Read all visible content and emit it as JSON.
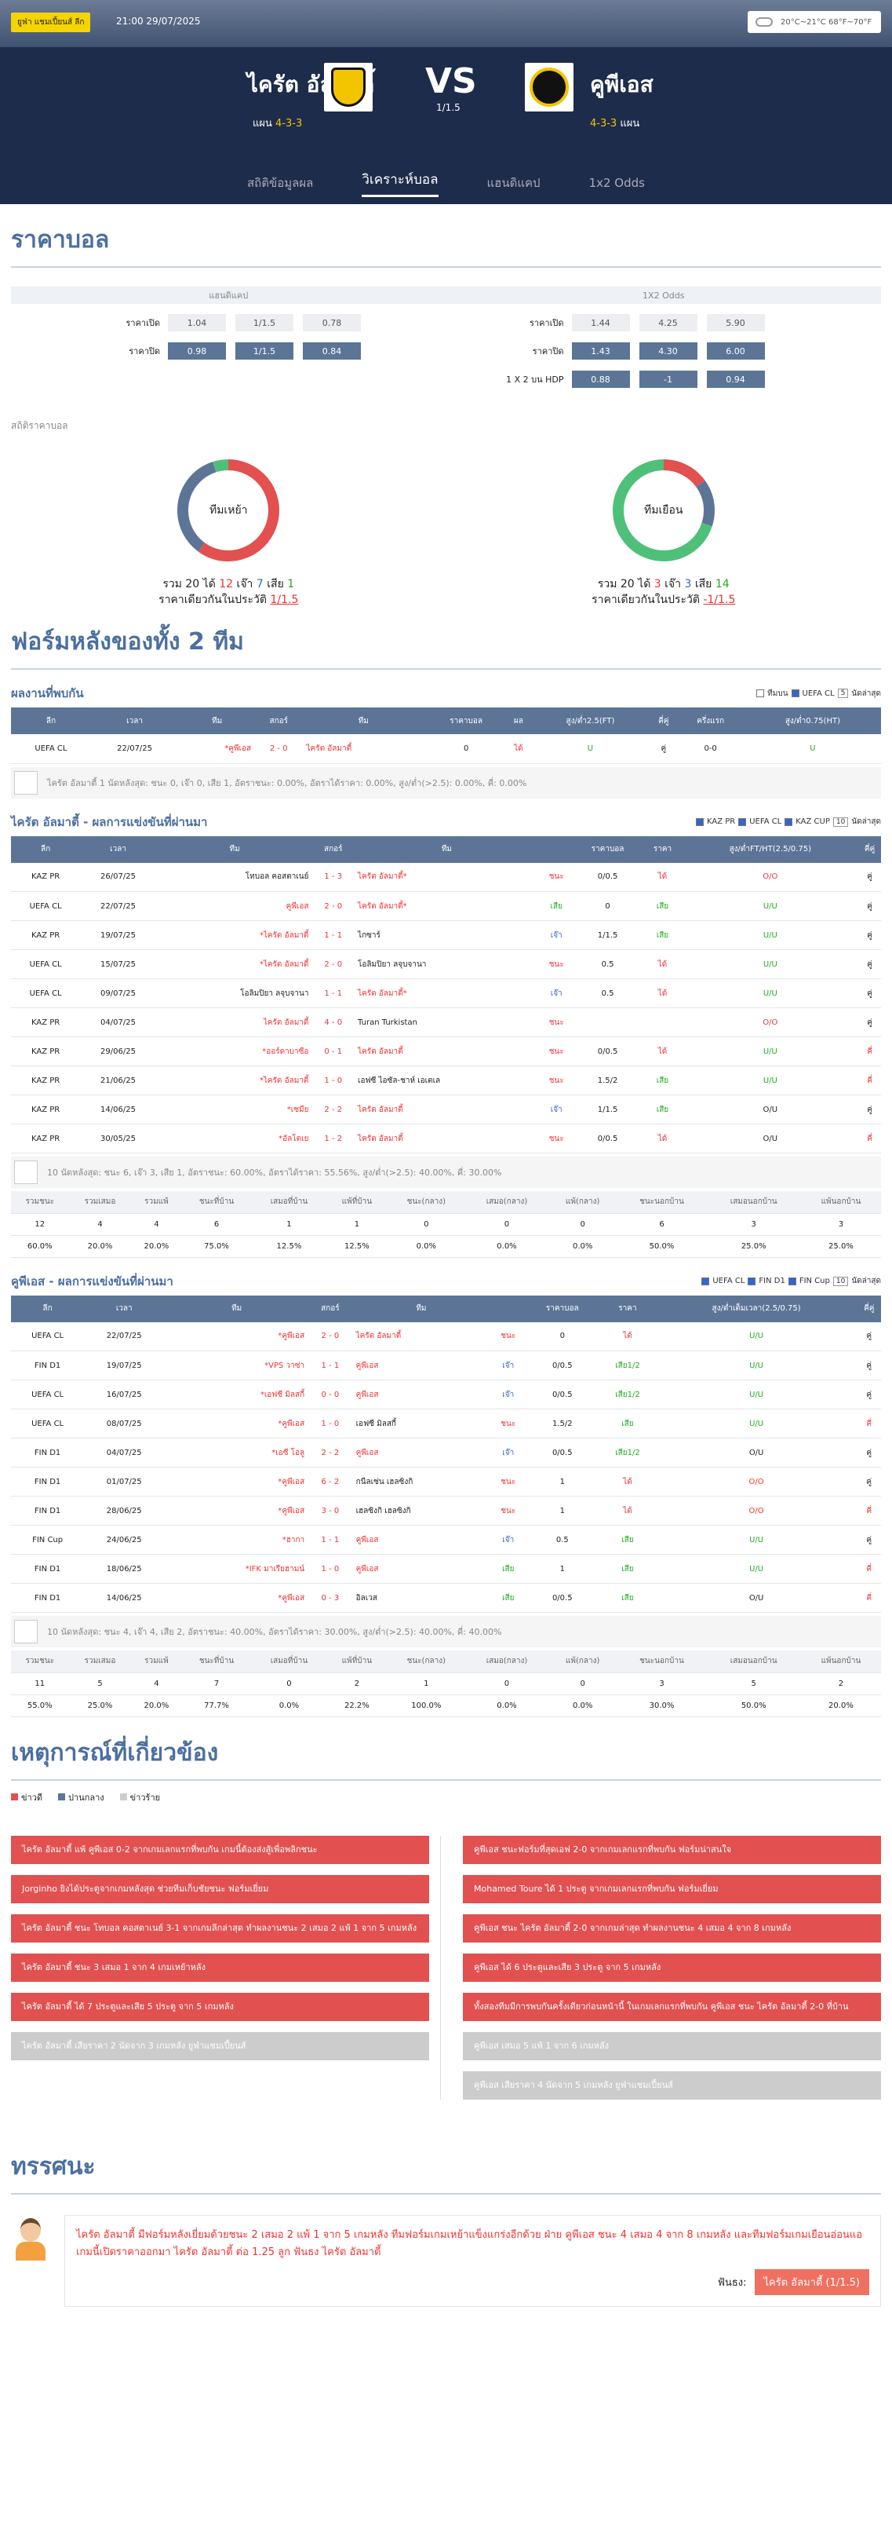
{
  "hero": {
    "league": "ยูฟ่า แชมเปี้ยนส์ ลีก",
    "datetime": "21:00 29/07/2025",
    "weather": "20°C~21°C  68°F~70°F",
    "home": "ไครัต อัลมาตี้",
    "away": "คูพีเอส",
    "vs": "VS",
    "hdp": "1/1.5",
    "home_form_lbl": "แผน",
    "home_form": "4-3-3",
    "away_form": "4-3-3",
    "away_form_lbl": "แผน"
  },
  "tabs": [
    "สถิติข้อมูลผล",
    "วิเคราะห์บอล",
    "แฮนดิแคป",
    "1x2 Odds"
  ],
  "odds": {
    "title": "ราคาบอล",
    "hcap_head": "แฮนดิแคป",
    "x12_head": "1X2 Odds",
    "open": "ราคาเปิด",
    "close": "ราคาปิด",
    "hdp_lbl": "1 X 2 บน HDP",
    "h_open": [
      "1.04",
      "1/1.5",
      "0.78"
    ],
    "h_close": [
      "0.98",
      "1/1.5",
      "0.84"
    ],
    "x_open": [
      "1.44",
      "4.25",
      "5.90"
    ],
    "x_close": [
      "1.43",
      "4.30",
      "6.00"
    ],
    "x_hdp": [
      "0.88",
      "-1",
      "0.94"
    ]
  },
  "stats": {
    "title": "สถิติราคาบอล",
    "home_lbl": "ทีมเหย้า",
    "away_lbl": "ทีมเยือน",
    "home_line": [
      "รวม",
      "20",
      "ได้",
      "12",
      "เจ๊า",
      "7",
      "เสีย",
      "1"
    ],
    "home_hdp": [
      "ราคาเดียวกันในประวัติ",
      "1/1.5"
    ],
    "away_line": [
      "รวม",
      "20",
      "ได้",
      "3",
      "เจ๊า",
      "3",
      "เสีย",
      "14"
    ],
    "away_hdp": [
      "ราคาเดียวกันในประวัติ",
      "-1/1.5"
    ]
  },
  "form": {
    "title": "ฟอร์มหลังของทั้ง 2 ทีม"
  },
  "h2h": {
    "title": "ผลงานที่พบกัน",
    "filters": [
      "ทีมบน",
      "UEFA CL",
      "5",
      "นัดล่าสุด"
    ],
    "cols": [
      "ลีก",
      "เวลา",
      "ทีม",
      "สกอร์",
      "ทีม",
      "ราคาบอล",
      "ผล",
      "สูง/ต่ำ2.5(FT)",
      "คี่คู่",
      "ครึ่งแรก",
      "สูง/ต่ำ0.75(HT)"
    ],
    "rows": [
      [
        "UEFA CL",
        "22/07/25",
        "*คูพีเอส",
        "2 - 0",
        "ไครัต อัลมาตี้",
        "0",
        "ได้",
        "U",
        "คู่",
        "0-0",
        "U"
      ]
    ],
    "summary": "ไครัต อัลมาตี้ 1 นัดหลังสุด: ชนะ 0, เจ๊า 0, เสีย 1, อัตราชนะ: 0.00%, อัตราได้ราคา: 0.00%, สูง/ต่ำ(>2.5): 0.00%, คี่: 0.00%"
  },
  "kairat": {
    "title": "ไครัต อัลมาตี้ - ผลการแข่งขันที่ผ่านมา",
    "filters": [
      "KAZ PR",
      "UEFA CL",
      "KAZ CUP",
      "10",
      "นัดล่าสุด"
    ],
    "cols": [
      "ลีก",
      "เวลา",
      "ทีม",
      "สกอร์",
      "ทีม",
      "",
      "ราคาบอล",
      "ราคา",
      "สูง/ต่ำFT/HT(2.5/0.75)",
      "คี่คู่"
    ],
    "rows": [
      [
        "KAZ PR",
        "26/07/25",
        "โทบอล คอสตาเนย์",
        "1 - 3",
        "ไครัต อัลมาตี้*",
        "ชนะ",
        "0/0.5",
        "ได้",
        "O/O",
        "คู่"
      ],
      [
        "UEFA CL",
        "22/07/25",
        "คูพีเอส",
        "2 - 0",
        "ไครัต อัลมาตี้*",
        "เสีย",
        "0",
        "เสีย",
        "U/U",
        "คู่"
      ],
      [
        "KAZ PR",
        "19/07/25",
        "*ไครัต อัลมาตี้",
        "1 - 1",
        "ไกซาร์",
        "เจ๊า",
        "1/1.5",
        "เสีย",
        "U/U",
        "คู่"
      ],
      [
        "UEFA CL",
        "15/07/25",
        "*ไครัต อัลมาตี้",
        "2 - 0",
        "โอลิมปิยา ลจุบจานา",
        "ชนะ",
        "0.5",
        "ได้",
        "U/U",
        "คู่"
      ],
      [
        "UEFA CL",
        "09/07/25",
        "โอลิมปิยา ลจุบจานา",
        "1 - 1",
        "ไครัต อัลมาตี้*",
        "เจ๊า",
        "0.5",
        "ได้",
        "U/U",
        "คู่"
      ],
      [
        "KAZ PR",
        "04/07/25",
        "ไครัต อัลมาตี้",
        "4 - 0",
        "Turan Turkistan",
        "ชนะ",
        "",
        "",
        "O/O",
        "คู่"
      ],
      [
        "KAZ PR",
        "29/06/25",
        "*ออร์ดาบาซือ",
        "0 - 1",
        "ไครัต อัลมาตี้",
        "ชนะ",
        "0/0.5",
        "ได้",
        "U/U",
        "คี่"
      ],
      [
        "KAZ PR",
        "21/06/25",
        "*ไครัต อัลมาตี้",
        "1 - 0",
        "เอฟซี ไอซัล-ชาห์ เอเตเล",
        "ชนะ",
        "1.5/2",
        "เสีย",
        "U/U",
        "คี่"
      ],
      [
        "KAZ PR",
        "14/06/25",
        "*เซมีย",
        "2 - 2",
        "ไครัต อัลมาตี้",
        "เจ๊า",
        "1/1.5",
        "เสีย",
        "O/U",
        "คู่"
      ],
      [
        "KAZ PR",
        "30/05/25",
        "*อัลโตเย",
        "1 - 2",
        "ไครัต อัลมาตี้",
        "ชนะ",
        "0/0.5",
        "ได้",
        "O/U",
        "คี่"
      ]
    ],
    "summary": "10 นัดหลังสุด: ชนะ 6, เจ๊า 3, เสีย 1, อัตราชนะ: 60.00%, อัตราได้ราคา: 55.56%, สูง/ต่ำ(>2.5): 40.00%, คี่: 30.00%",
    "stat_head": [
      "รวมชนะ",
      "รวมเสมอ",
      "รวมแพ้",
      "ชนะที่บ้าน",
      "เสมอที่บ้าน",
      "แพ้ที่บ้าน",
      "ชนะ(กลาง)",
      "เสมอ(กลาง)",
      "แพ้(กลาง)",
      "ชนะนอกบ้าน",
      "เสมอนอกบ้าน",
      "แพ้นอกบ้าน"
    ],
    "stat_n": [
      "12",
      "4",
      "4",
      "6",
      "1",
      "1",
      "0",
      "0",
      "0",
      "6",
      "3",
      "3"
    ],
    "stat_p": [
      "60.0%",
      "20.0%",
      "20.0%",
      "75.0%",
      "12.5%",
      "12.5%",
      "0.0%",
      "0.0%",
      "0.0%",
      "50.0%",
      "25.0%",
      "25.0%"
    ]
  },
  "kups": {
    "title": "คูพีเอส - ผลการแข่งขันที่ผ่านมา",
    "filters": [
      "UEFA CL",
      "FIN D1",
      "FIN Cup",
      "10",
      "นัดล่าสุด"
    ],
    "cols": [
      "ลีก",
      "เวลา",
      "ทีม",
      "สกอร์",
      "ทีม",
      "",
      "ราคาบอล",
      "ราคา",
      "สูง/ต่ำเต็มเวลา(2.5/0.75)",
      "คี่คู่"
    ],
    "rows": [
      [
        "UEFA CL",
        "22/07/25",
        "*คูพีเอส",
        "2 - 0",
        "ไครัต อัลมาตี้",
        "ชนะ",
        "0",
        "ได้",
        "U/U",
        "คู่"
      ],
      [
        "FIN D1",
        "19/07/25",
        "*VPS วาซ่า",
        "1 - 1",
        "คูพีเอส",
        "เจ๊า",
        "0/0.5",
        "เสีย1/2",
        "U/U",
        "คู่"
      ],
      [
        "UEFA CL",
        "16/07/25",
        "*เอฟซี มิลสกี้",
        "0 - 0",
        "คูพีเอส",
        "เจ๊า",
        "0/0.5",
        "เสีย1/2",
        "U/U",
        "คู่"
      ],
      [
        "UEFA CL",
        "08/07/25",
        "*คูพีเอส",
        "1 - 0",
        "เอฟซี มิลสกี้",
        "ชนะ",
        "1.5/2",
        "เสีย",
        "U/U",
        "คี่"
      ],
      [
        "FIN D1",
        "04/07/25",
        "*เอซี โอลู",
        "2 - 2",
        "คูพีเอส",
        "เจ๊า",
        "0/0.5",
        "เสีย1/2",
        "O/U",
        "คู่"
      ],
      [
        "FIN D1",
        "01/07/25",
        "*คูพีเอส",
        "6 - 2",
        "กนีลเซ่น เฮลซิงกิ",
        "ชนะ",
        "1",
        "ได้",
        "O/O",
        "คู่"
      ],
      [
        "FIN D1",
        "28/06/25",
        "*คูพีเอส",
        "3 - 0",
        "เฮลซิงกิ เฮลซิงกิ",
        "ชนะ",
        "1",
        "ได้",
        "O/O",
        "คี่"
      ],
      [
        "FIN Cup",
        "24/06/25",
        "*ฮากา",
        "1 - 1",
        "คูพีเอส",
        "เจ๊า",
        "0.5",
        "เสีย",
        "U/U",
        "คู่"
      ],
      [
        "FIN D1",
        "18/06/25",
        "*IFK มาเรียฮามน์",
        "1 - 0",
        "คูพีเอส",
        "เสีย",
        "1",
        "เสีย",
        "U/U",
        "คี่"
      ],
      [
        "FIN D1",
        "14/06/25",
        "*คูพีเอส",
        "0 - 3",
        "อิลเวส",
        "เสีย",
        "0/0.5",
        "เสีย",
        "O/U",
        "คี่"
      ]
    ],
    "summary": "10 นัดหลังสุด: ชนะ 4, เจ๊า 4, เสีย 2, อัตราชนะ: 40.00%, อัตราได้ราคา: 30.00%, สูง/ต่ำ(>2.5): 40.00%, คี่: 40.00%",
    "stat_head": [
      "รวมชนะ",
      "รวมเสมอ",
      "รวมแพ้",
      "ชนะที่บ้าน",
      "เสมอที่บ้าน",
      "แพ้ที่บ้าน",
      "ชนะ(กลาง)",
      "เสมอ(กลาง)",
      "แพ้(กลาง)",
      "ชนะนอกบ้าน",
      "เสมอนอกบ้าน",
      "แพ้นอกบ้าน"
    ],
    "stat_n": [
      "11",
      "5",
      "4",
      "7",
      "0",
      "2",
      "1",
      "0",
      "0",
      "3",
      "5",
      "2"
    ],
    "stat_p": [
      "55.0%",
      "25.0%",
      "20.0%",
      "77.7%",
      "0.0%",
      "22.2%",
      "100.0%",
      "0.0%",
      "0.0%",
      "30.0%",
      "50.0%",
      "20.0%"
    ]
  },
  "events": {
    "title": "เหตุการณ์ที่เกี่ยวข้อง",
    "legend": [
      "ข่าวดี",
      "ปานกลาง",
      "ข่าวร้าย"
    ],
    "left": [
      [
        "red",
        "ไครัต อัลมาตี้ แพ้ คูพีเอส 0-2 จากเกมเลกแรกที่พบกัน เกมนี้ต้องส่งสู้เพื่อพลิกชนะ"
      ],
      [
        "red",
        "Jorginho ยิงได้ประตูจากเกมหลังสุด ช่วยทีมเก็บชัยชนะ ฟอร์มเยี่ยม"
      ],
      [
        "red",
        "ไครัต อัลมาตี้ ชนะ โทบอล คอสตาเนย์ 3-1 จากเกมลีกล่าสุด ทำผลงานชนะ 2 เสมอ 2 แพ้ 1 จาก 5 เกมหลัง"
      ],
      [
        "red",
        "ไครัต อัลมาตี้ ชนะ 3 เสมอ 1 จาก 4 เกมเหย้าหลัง"
      ],
      [
        "red",
        "ไครัต อัลมาตี้ ได้ 7 ประตูและเสีย 5 ประตู จาก 5 เกมหลัง"
      ],
      [
        "grey",
        "ไครัต อัลมาตี้ เสียราคา 2 นัดจาก 3 เกมหลัง ยูฟ่าแชมเปี้ยนส์"
      ]
    ],
    "right": [
      [
        "red",
        "คูพีเอส ชนะฟอร์มที่สุดเอฟ 2-0 จากเกมเลกแรกที่พบกัน ฟอร์มน่าสนใจ"
      ],
      [
        "red",
        "Mohamed Toure ได้ 1 ประตู จากเกมเลกแรกที่พบกัน ฟอร์มเยี่ยม"
      ],
      [
        "red",
        "คูพีเอส ชนะ ไครัต อัลมาตี้ 2-0 จากเกมล่าสุด ทำผลงานชนะ 4 เสมอ 4 จาก 8 เกมหลัง"
      ],
      [
        "red",
        "คูพีเอส ได้ 6 ประตูและเสีย 3 ประตู จาก 5 เกมหลัง"
      ],
      [
        "red",
        "ทั้งสองทีมมีการพบกันครั้งเดียวก่อนหน้านี้ ในเกมเลกแรกที่พบกัน คูพีเอส ชนะ ไครัต อัลมาตี้ 2-0 ที่บ้าน"
      ],
      [
        "grey",
        "คูพีเอส เสมอ 5 แพ้ 1 จาก 6 เกมหลัง"
      ],
      [
        "grey",
        "คูพีเอส เสียราคา 4 นัดจาก 5 เกมหลัง ยูฟ่าแชมเปี้ยนส์"
      ]
    ]
  },
  "view": {
    "title": "ทรรศนะ",
    "text": "ไครัต อัลมาตี้ มีฟอร์มหลังเยี่ยมด้วยชนะ 2 เสมอ 2 แพ้ 1 จาก 5 เกมหลัง ทีมฟอร์มเกมเหย้าแข็งแกร่งอีกด้วย ฝ่าย คูพีเอส ชนะ 4 เสมอ 4 จาก 8 เกมหลัง และทีมฟอร์มเกมเยือนอ่อนแอ เกมนี้เปิดราคาออกมา ไครัต อัลมาตี้ ต่อ 1.25 ลูก ฟันธง ไครัต อัลมาตี้",
    "pick_lbl": "ฟันธง:",
    "pick": "ไครัต อัลมาตี้  (1/1.5)"
  },
  "colors": {
    "accent": "#4b6fa1",
    "header": "#5c7597",
    "red": "#e25050"
  }
}
